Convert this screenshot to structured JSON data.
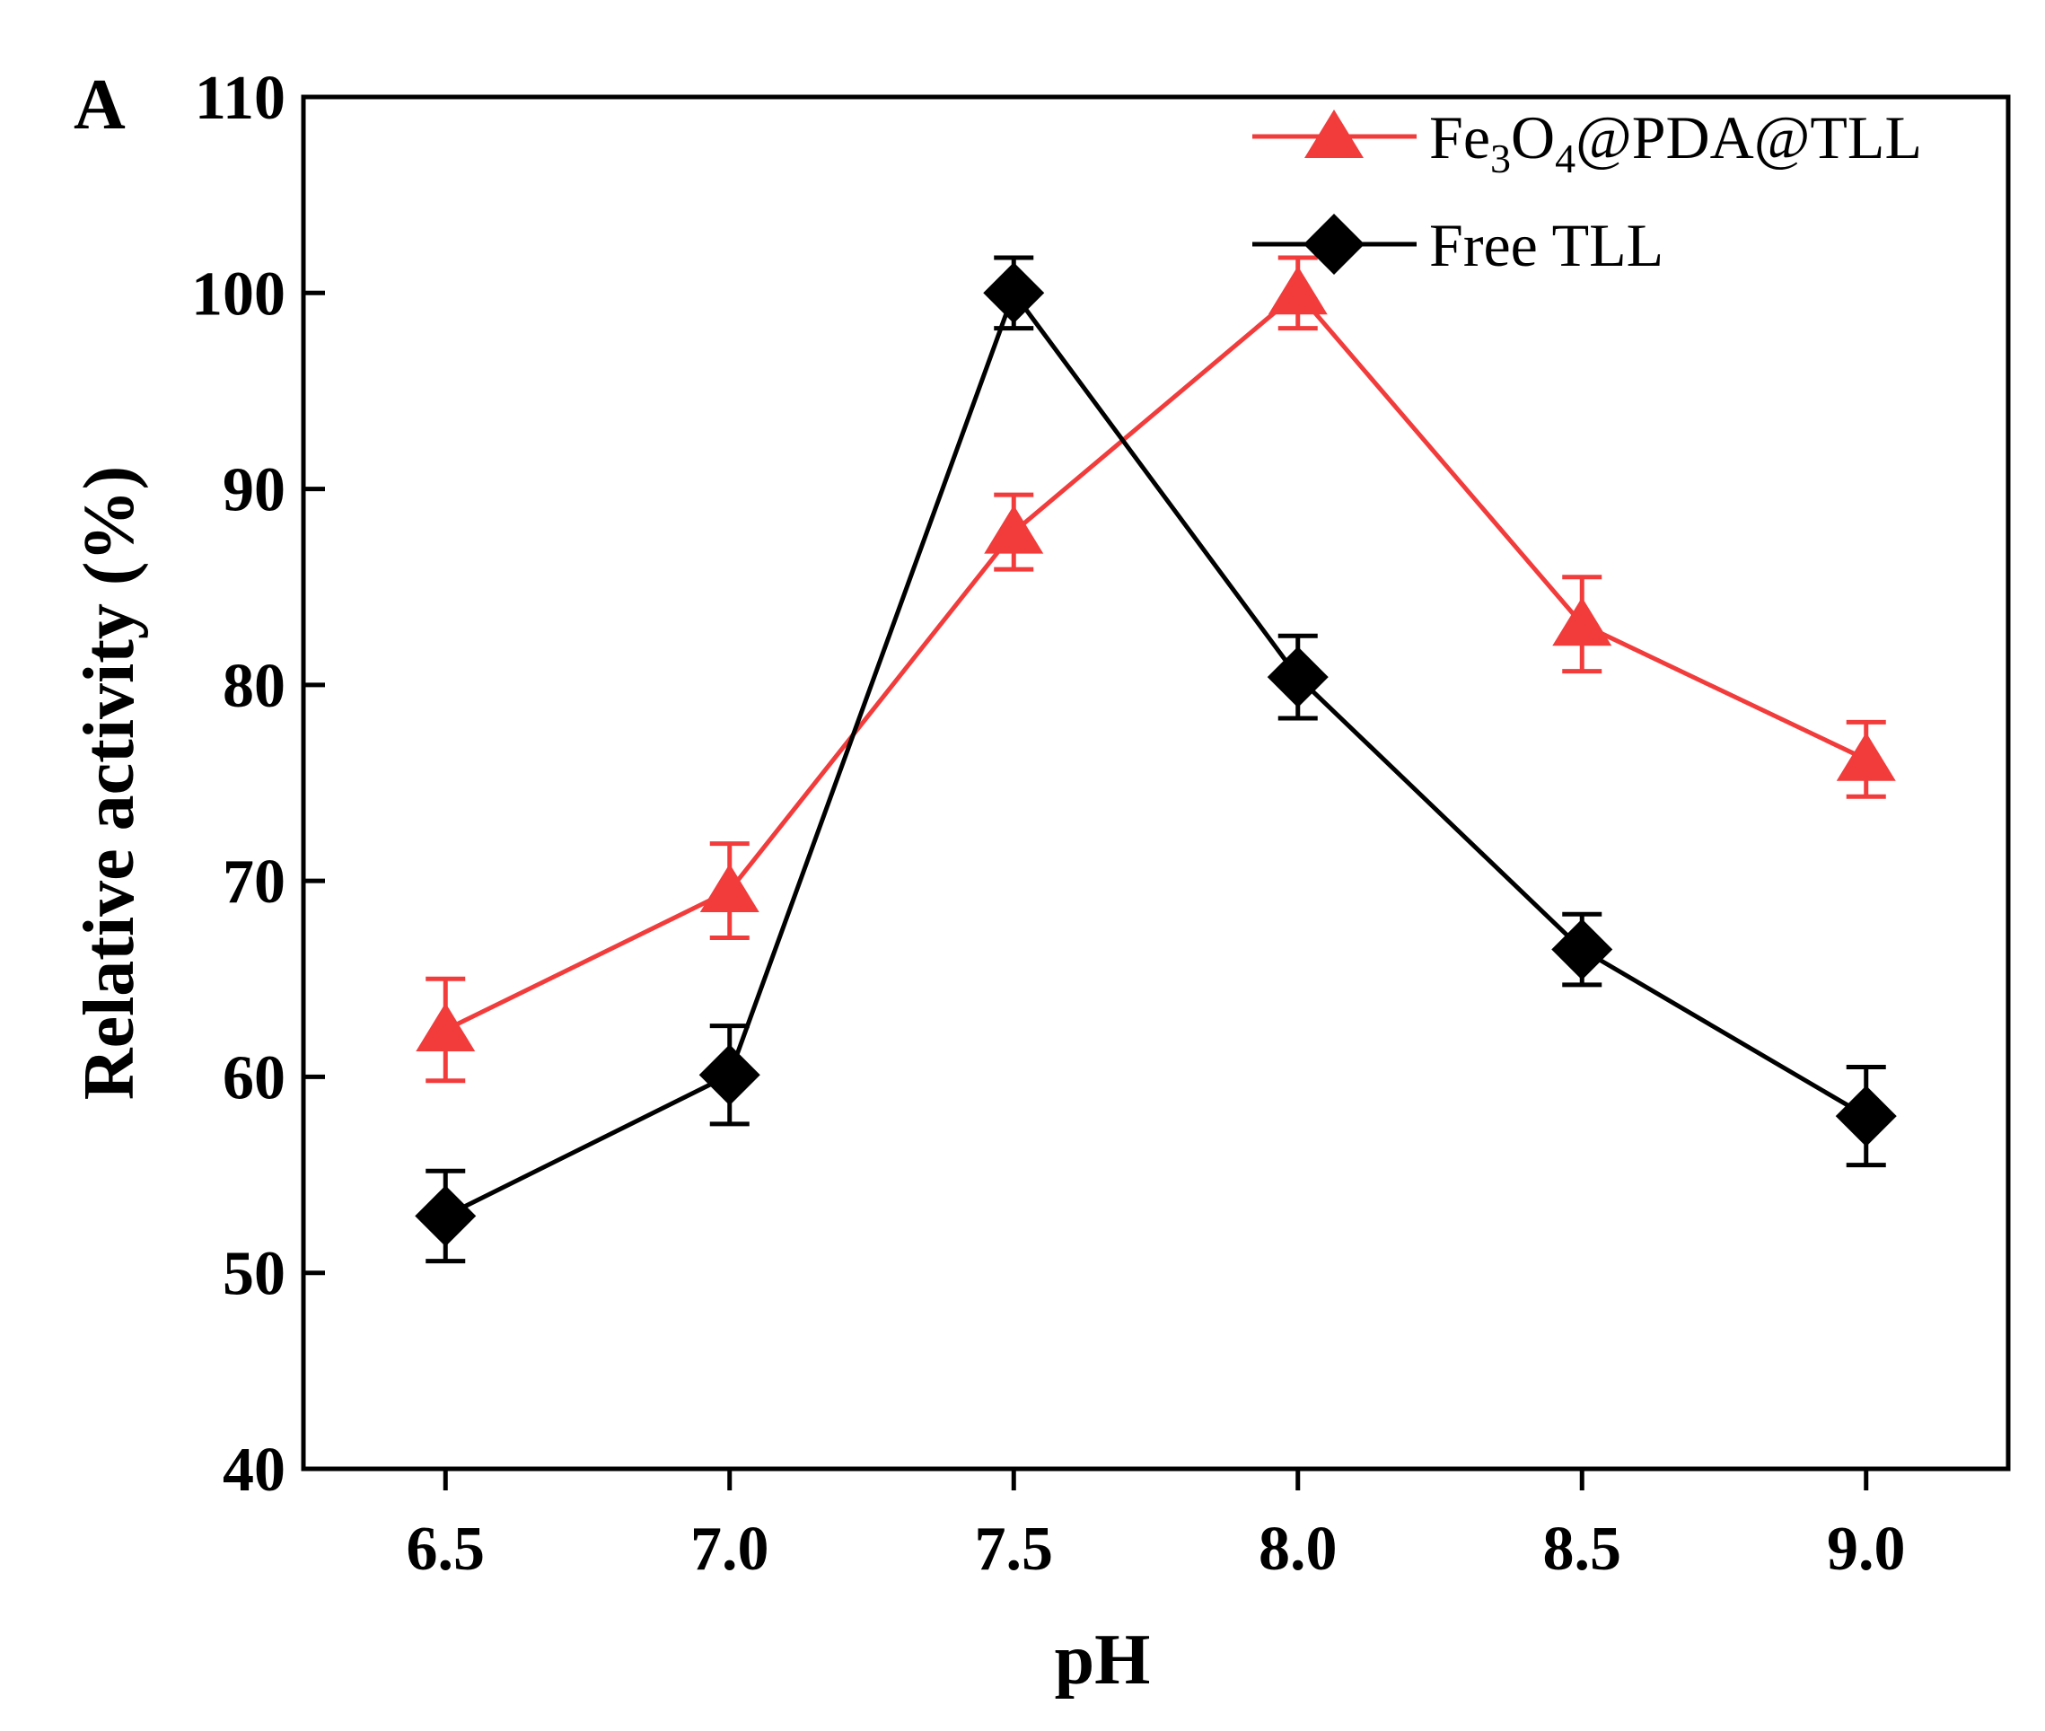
{
  "chart_data": {
    "type": "line",
    "panel_label": "A",
    "xlabel": "pH",
    "ylabel": "Relative activity (%)",
    "categories": [
      "6.5",
      "7.0",
      "7.5",
      "8.0",
      "8.5",
      "9.0"
    ],
    "x": [
      6.5,
      7.0,
      7.5,
      8.0,
      8.5,
      9.0
    ],
    "xlim": [
      6.25,
      9.25
    ],
    "ylim": [
      40,
      110
    ],
    "yticks": [
      40,
      50,
      60,
      70,
      80,
      90,
      100,
      110
    ],
    "grid": false,
    "legend_position": "top-right",
    "series": [
      {
        "name": "Fe3O4@PDA@TLL",
        "legend_parts": [
          "Fe",
          "3",
          "O",
          "4",
          "@PDA@TLL"
        ],
        "color": "#f23c3c",
        "marker": "triangle",
        "values": [
          62.4,
          69.5,
          87.8,
          100.0,
          83.1,
          76.2
        ],
        "errors": [
          2.6,
          2.4,
          1.9,
          1.8,
          2.4,
          1.9
        ]
      },
      {
        "name": "Free TLL",
        "color": "#000000",
        "marker": "diamond",
        "values": [
          52.9,
          60.1,
          100.0,
          80.4,
          66.5,
          58.0
        ],
        "errors": [
          2.3,
          2.5,
          1.8,
          2.1,
          1.8,
          2.5
        ]
      }
    ]
  }
}
